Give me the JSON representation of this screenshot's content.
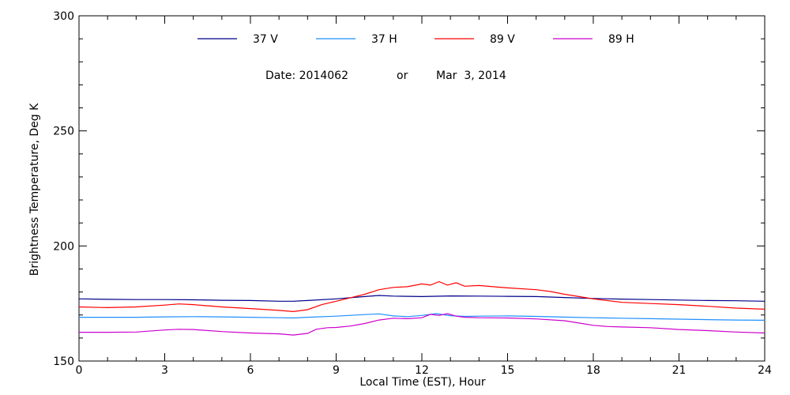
{
  "chart_data": {
    "type": "line",
    "title": "",
    "date_label": "Date: 2014062",
    "or_label": "or",
    "date_text": "Mar  3, 2014",
    "xlabel": "Local Time (EST), Hour",
    "ylabel": "Brightness Temperature, Deg K",
    "xlim": [
      0,
      24
    ],
    "ylim": [
      150,
      300
    ],
    "xticks": [
      0,
      3,
      6,
      9,
      12,
      15,
      18,
      21,
      24
    ],
    "yticks": [
      150,
      200,
      250,
      300
    ],
    "grid": false,
    "legend_position": "top",
    "series": [
      {
        "name": "37 V",
        "color": "#00008b",
        "x": [
          0,
          1,
          2,
          3,
          4,
          5,
          6,
          7,
          7.5,
          8,
          9,
          10,
          10.5,
          11,
          12,
          13,
          14,
          15,
          16,
          17,
          18,
          19,
          20,
          21,
          22,
          23,
          24
        ],
        "y": [
          177,
          176.8,
          176.7,
          176.7,
          176.6,
          176.4,
          176.3,
          176,
          176,
          176.3,
          177,
          178,
          178.5,
          178.2,
          178,
          178.3,
          178.2,
          178.1,
          178,
          177.6,
          177.2,
          176.9,
          176.7,
          176.5,
          176.3,
          176.2,
          176
        ]
      },
      {
        "name": "37 H",
        "color": "#1e90ff",
        "x": [
          0,
          1,
          2,
          3,
          4,
          5,
          6,
          7,
          7.5,
          8,
          9,
          10,
          10.5,
          11,
          11.5,
          12,
          12.5,
          13,
          13.5,
          14,
          15,
          16,
          17,
          18,
          19,
          20,
          21,
          22,
          23,
          24
        ],
        "y": [
          169,
          169,
          169,
          169.2,
          169.3,
          169.2,
          169,
          168.8,
          168.7,
          169,
          169.5,
          170.2,
          170.5,
          169.6,
          169.3,
          169.8,
          170.6,
          169.7,
          169.4,
          169.5,
          169.6,
          169.4,
          169.1,
          168.8,
          168.6,
          168.4,
          168.2,
          168,
          167.8,
          167.7
        ]
      },
      {
        "name": "89 V",
        "color": "#ff0000",
        "x": [
          0,
          1,
          2,
          3,
          3.5,
          4,
          5,
          6,
          7,
          7.5,
          8,
          8.5,
          9,
          9.5,
          10,
          10.5,
          11,
          11.5,
          12,
          12.3,
          12.6,
          12.9,
          13.2,
          13.5,
          14,
          15,
          16,
          16.5,
          17,
          17.5,
          18,
          19,
          20,
          21,
          22,
          23,
          24
        ],
        "y": [
          173.5,
          173.2,
          173.5,
          174.3,
          174.8,
          174.5,
          173.5,
          172.8,
          172,
          171.5,
          172.3,
          174.5,
          176,
          177.5,
          179,
          181,
          182,
          182.3,
          183.5,
          183,
          184.5,
          183,
          184,
          182.5,
          182.8,
          181.8,
          181,
          180.2,
          179,
          178,
          177,
          175.5,
          175,
          174.5,
          173.8,
          173,
          172.5
        ]
      },
      {
        "name": "89 H",
        "color": "#cc00cc",
        "x": [
          0,
          1,
          2,
          3,
          3.5,
          4,
          5,
          6,
          7,
          7.5,
          8,
          8.3,
          8.7,
          9,
          9.5,
          10,
          10.5,
          11,
          11.5,
          12,
          12.3,
          12.6,
          12.9,
          13.2,
          13.5,
          14,
          15,
          16,
          17,
          17.5,
          18,
          18.5,
          19,
          20,
          21,
          22,
          23,
          24
        ],
        "y": [
          162.5,
          162.5,
          162.6,
          163.5,
          163.8,
          163.7,
          162.8,
          162.2,
          161.8,
          161.3,
          162,
          163.8,
          164.5,
          164.6,
          165.2,
          166.3,
          167.8,
          168.6,
          168.4,
          168.8,
          170.3,
          169.8,
          170.6,
          169.5,
          169,
          168.8,
          168.7,
          168.3,
          167.5,
          166.5,
          165.5,
          165,
          164.8,
          164.5,
          163.7,
          163.2,
          162.6,
          162.2
        ]
      }
    ]
  }
}
